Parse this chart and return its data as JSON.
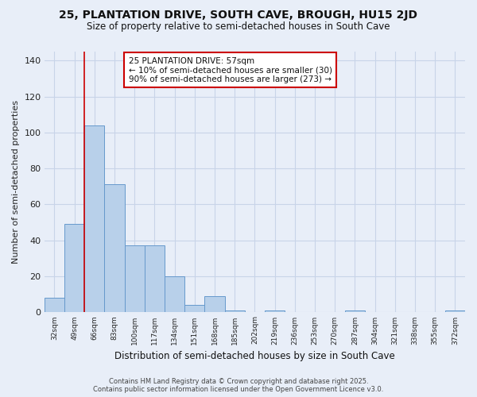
{
  "title": "25, PLANTATION DRIVE, SOUTH CAVE, BROUGH, HU15 2JD",
  "subtitle": "Size of property relative to semi-detached houses in South Cave",
  "xlabel": "Distribution of semi-detached houses by size in South Cave",
  "ylabel": "Number of semi-detached properties",
  "bins": [
    "32sqm",
    "49sqm",
    "66sqm",
    "83sqm",
    "100sqm",
    "117sqm",
    "134sqm",
    "151sqm",
    "168sqm",
    "185sqm",
    "202sqm",
    "219sqm",
    "236sqm",
    "253sqm",
    "270sqm",
    "287sqm",
    "304sqm",
    "321sqm",
    "338sqm",
    "355sqm",
    "372sqm"
  ],
  "values": [
    8,
    49,
    104,
    71,
    37,
    37,
    20,
    4,
    9,
    1,
    0,
    1,
    0,
    0,
    0,
    1,
    0,
    0,
    0,
    0,
    1
  ],
  "bar_color": "#b8d0ea",
  "bar_edge_color": "#6699cc",
  "vertical_line_x": 2.0,
  "annotation_title": "25 PLANTATION DRIVE: 57sqm",
  "annotation_line1": "← 10% of semi-detached houses are smaller (30)",
  "annotation_line2": "90% of semi-detached houses are larger (273) →",
  "ylim": [
    0,
    145
  ],
  "yticks": [
    0,
    20,
    40,
    60,
    80,
    100,
    120,
    140
  ],
  "plot_bg_color": "#e8eef8",
  "fig_bg_color": "#e8eef8",
  "footer_line1": "Contains HM Land Registry data © Crown copyright and database right 2025.",
  "footer_line2": "Contains public sector information licensed under the Open Government Licence v3.0."
}
